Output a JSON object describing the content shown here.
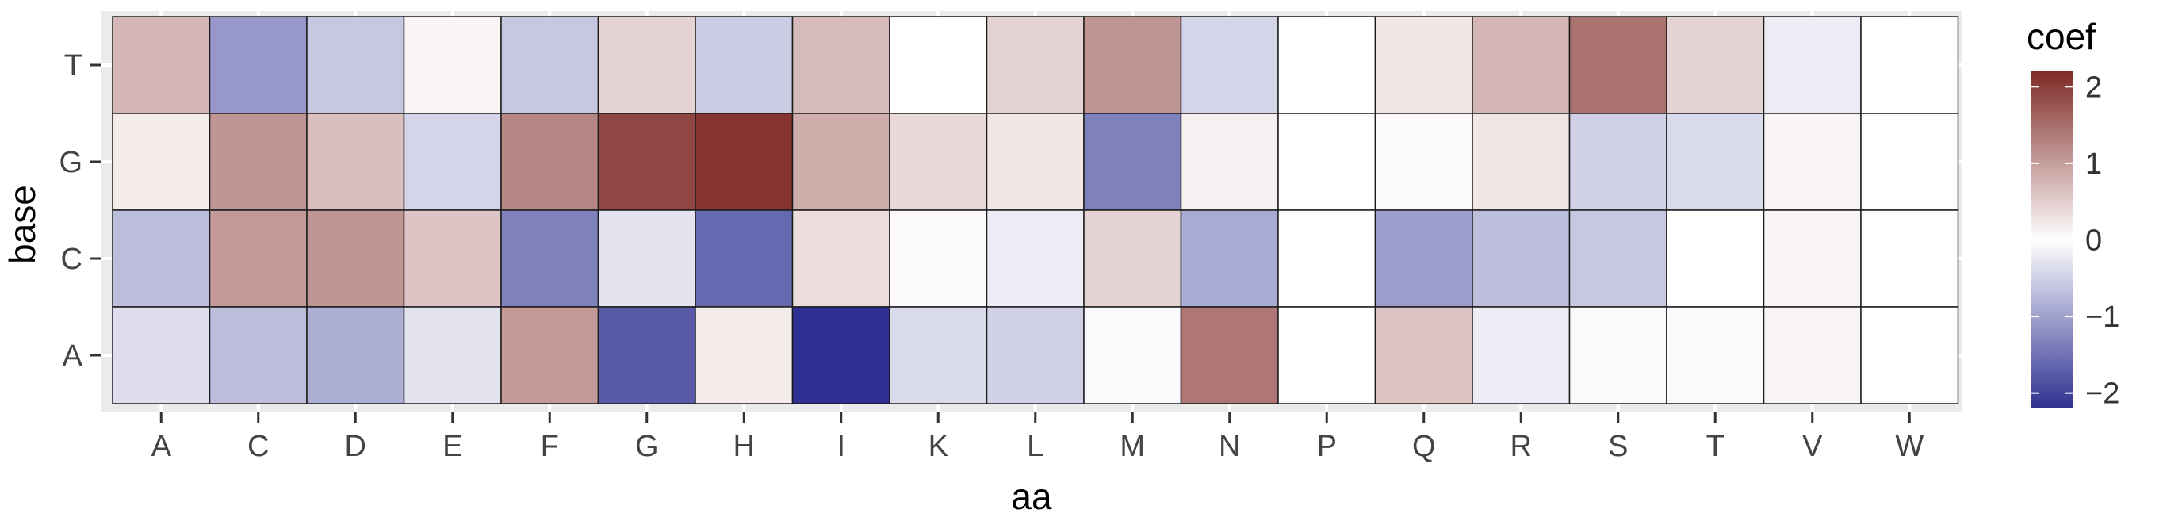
{
  "chart_data": {
    "type": "heatmap",
    "xlabel": "aa",
    "ylabel": "base",
    "x_categories": [
      "A",
      "C",
      "D",
      "E",
      "F",
      "G",
      "H",
      "I",
      "K",
      "L",
      "M",
      "N",
      "P",
      "Q",
      "R",
      "S",
      "T",
      "V",
      "W"
    ],
    "y_categories": [
      "T",
      "G",
      "C",
      "A"
    ],
    "values": [
      [
        0.75,
        -1.1,
        -0.6,
        0.1,
        -0.6,
        0.45,
        -0.55,
        0.7,
        0.0,
        0.45,
        1.1,
        -0.45,
        0.0,
        0.25,
        0.75,
        1.45,
        0.45,
        -0.2,
        0.0
      ],
      [
        0.2,
        1.1,
        0.65,
        -0.45,
        1.25,
        1.9,
        2.1,
        0.85,
        0.4,
        0.25,
        -1.35,
        0.15,
        0.0,
        0.05,
        0.25,
        -0.5,
        -0.4,
        0.1,
        0.0
      ],
      [
        -0.7,
        1.05,
        1.1,
        0.6,
        -1.35,
        -0.3,
        -1.6,
        0.35,
        0.05,
        -0.2,
        0.45,
        -0.9,
        0.0,
        -1.05,
        -0.7,
        -0.6,
        0.0,
        0.1,
        0.0
      ],
      [
        -0.35,
        -0.7,
        -0.85,
        -0.3,
        1.05,
        -1.75,
        0.2,
        -2.2,
        -0.4,
        -0.5,
        -0.05,
        1.4,
        0.0,
        0.6,
        -0.2,
        -0.05,
        -0.05,
        0.1,
        0.0
      ]
    ],
    "color_scale": {
      "low": "#2e3192",
      "mid": "#ffffff",
      "high": "#7f2a26",
      "limits": [
        -2.2,
        2.2
      ]
    },
    "legend": {
      "title": "coef",
      "breaks": [
        2,
        1,
        0,
        -1,
        -2
      ],
      "break_labels": [
        "2",
        "1",
        "0",
        "−1",
        "−2"
      ],
      "position": "right"
    },
    "grid": true
  }
}
